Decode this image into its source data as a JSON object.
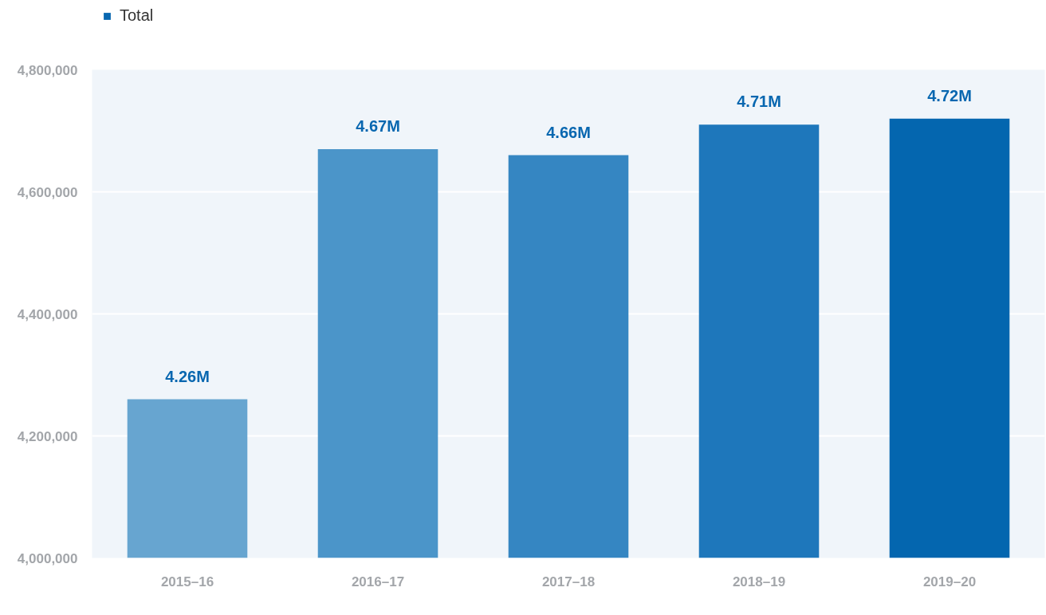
{
  "chart_data": {
    "type": "bar",
    "categories": [
      "2015–16",
      "2016–17",
      "2017–18",
      "2018–19",
      "2019–20"
    ],
    "series": [
      {
        "name": "Total",
        "color": "#0867b0",
        "colors": [
          "#67a5d0",
          "#4b95c9",
          "#3586c2",
          "#1e77bb",
          "#0466af"
        ],
        "values": [
          4260000,
          4670000,
          4660000,
          4710000,
          4720000
        ],
        "value_labels": [
          "4.26M",
          "4.67M",
          "4.66M",
          "4.71M",
          "4.72M"
        ]
      }
    ],
    "ylim": [
      4000000,
      4800000
    ],
    "yticks": [
      {
        "value": 4000000,
        "label": "4,000,000"
      },
      {
        "value": 4200000,
        "label": "4,200,000"
      },
      {
        "value": 4400000,
        "label": "4,400,000"
      },
      {
        "value": 4600000,
        "label": "4,600,000"
      },
      {
        "value": 4800000,
        "label": "4,800,000"
      }
    ],
    "grid": "y",
    "legend": "top left"
  }
}
